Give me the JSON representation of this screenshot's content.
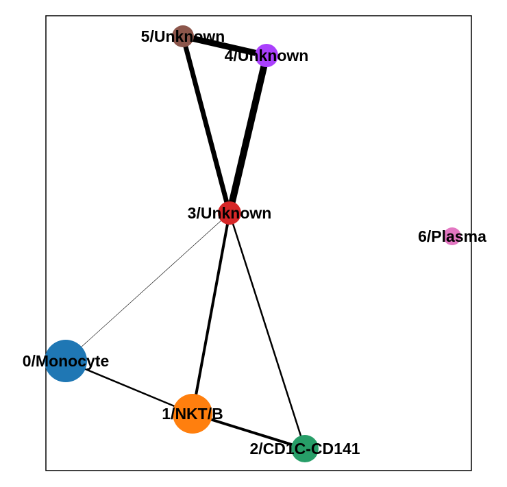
{
  "graph": {
    "nodes": [
      {
        "id": "0",
        "label": "0/Monocyte",
        "color": "#1f77b4"
      },
      {
        "id": "1",
        "label": "1/NKT/B",
        "color": "#ff7f0e"
      },
      {
        "id": "2",
        "label": "2/CD1C-CD141",
        "color": "#279e68"
      },
      {
        "id": "3",
        "label": "3/Unknown",
        "color": "#d62728"
      },
      {
        "id": "4",
        "label": "4/Unknown",
        "color": "#aa40fc"
      },
      {
        "id": "5",
        "label": "5/Unknown",
        "color": "#8c564b"
      },
      {
        "id": "6",
        "label": "6/Plasma",
        "color": "#e377c2"
      }
    ],
    "edges": [
      {
        "source": "5",
        "target": "4",
        "weight": 9
      },
      {
        "source": "5",
        "target": "3",
        "weight": 7
      },
      {
        "source": "4",
        "target": "3",
        "weight": 10
      },
      {
        "source": "3",
        "target": "0",
        "weight": 0.6
      },
      {
        "source": "3",
        "target": "1",
        "weight": 4
      },
      {
        "source": "3",
        "target": "2",
        "weight": 2.5
      },
      {
        "source": "0",
        "target": "1",
        "weight": 2.5
      },
      {
        "source": "1",
        "target": "2",
        "weight": 4
      }
    ]
  }
}
